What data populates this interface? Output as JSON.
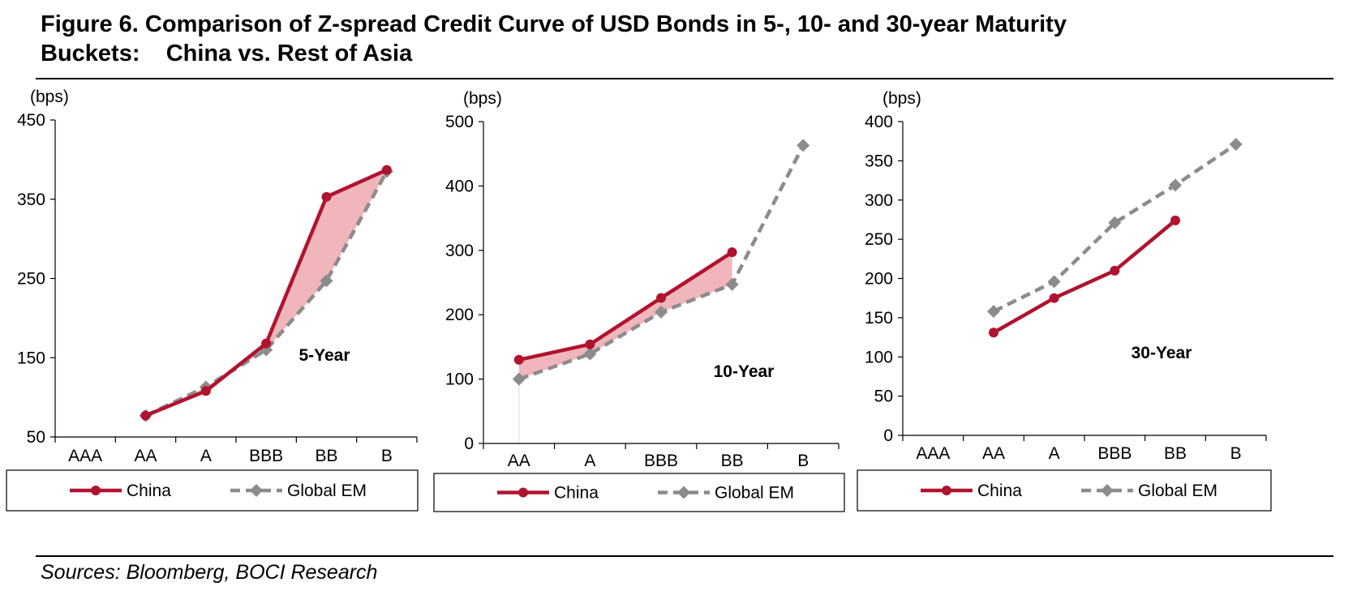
{
  "title": {
    "line1": "Figure 6. Comparison of Z-spread Credit Curve of USD Bonds in 5-, 10- and 30-year Maturity",
    "line2": "Buckets:    China vs. Rest of Asia"
  },
  "source": "Sources: Bloomberg, BOCI Research",
  "colors": {
    "china": "#b0132f",
    "global": "#8c8c8c",
    "fill": "#f0b6bb",
    "axis": "#000000"
  },
  "chart_data": [
    {
      "type": "line",
      "annotation": "5-Year",
      "ylabel": "(bps)",
      "ylim": [
        50,
        450
      ],
      "yticks": [
        50,
        150,
        250,
        350,
        450
      ],
      "categories": [
        "AAA",
        "AA",
        "A",
        "BBB",
        "BB",
        "B"
      ],
      "legend_position": "bottom",
      "shaded_gap": true,
      "series": [
        {
          "name": "China",
          "marker": "circle",
          "values": [
            null,
            77,
            108,
            168,
            353,
            387
          ]
        },
        {
          "name": "Global EM",
          "marker": "diamond",
          "values": [
            null,
            77,
            113,
            160,
            247,
            385
          ]
        }
      ]
    },
    {
      "type": "line",
      "annotation": "10-Year",
      "ylabel": "(bps)",
      "ylim": [
        0,
        500
      ],
      "yticks": [
        0,
        100,
        200,
        300,
        400,
        500
      ],
      "categories": [
        "AA",
        "A",
        "BBB",
        "BB",
        "B"
      ],
      "legend_position": "bottom",
      "shaded_gap": true,
      "series": [
        {
          "name": "China",
          "marker": "circle",
          "values": [
            130,
            154,
            226,
            297,
            null
          ]
        },
        {
          "name": "Global EM",
          "marker": "diamond",
          "values": [
            100,
            139,
            204,
            247,
            463
          ]
        }
      ]
    },
    {
      "type": "line",
      "annotation": "30-Year",
      "ylabel": "(bps)",
      "ylim": [
        0,
        400
      ],
      "yticks": [
        0,
        50,
        100,
        150,
        200,
        250,
        300,
        350,
        400
      ],
      "categories": [
        "AAA",
        "AA",
        "A",
        "BBB",
        "BB",
        "B"
      ],
      "legend_position": "bottom",
      "shaded_gap": false,
      "series": [
        {
          "name": "China",
          "marker": "circle",
          "values": [
            null,
            131,
            175,
            210,
            274,
            null
          ]
        },
        {
          "name": "Global EM",
          "marker": "diamond",
          "values": [
            null,
            158,
            196,
            271,
            319,
            371
          ]
        }
      ]
    }
  ]
}
